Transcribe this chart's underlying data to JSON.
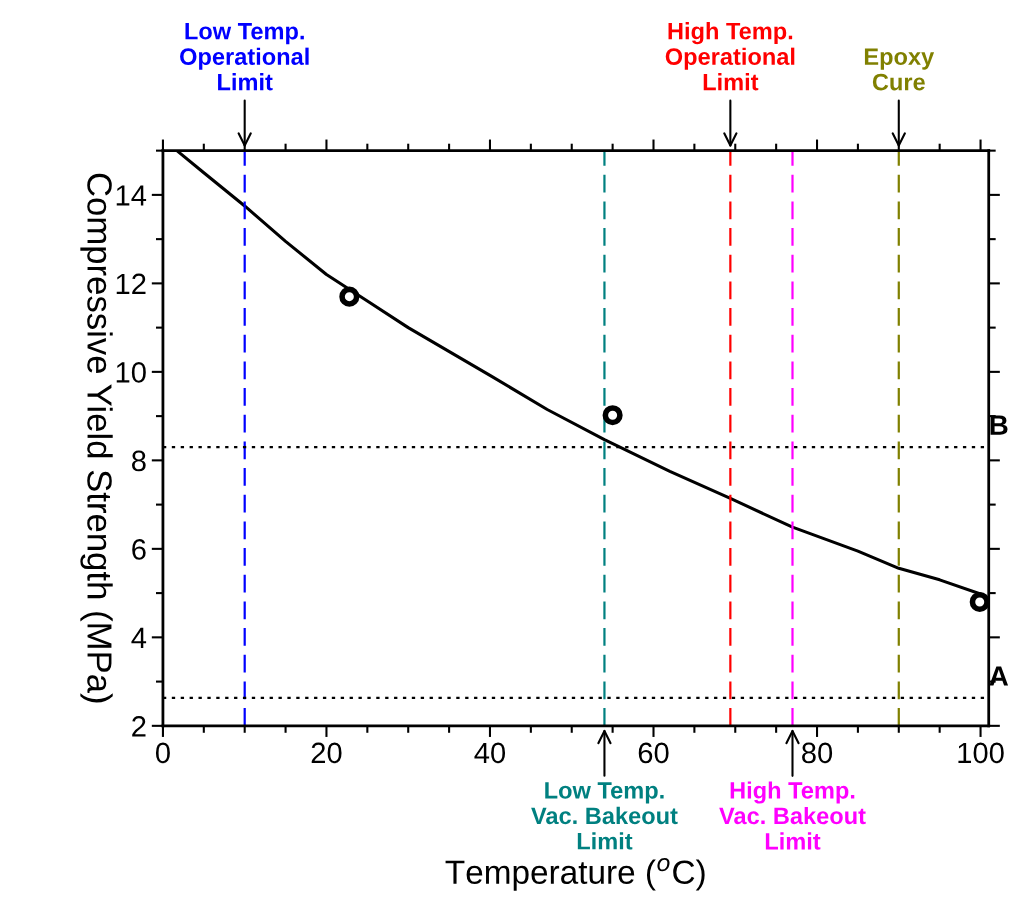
{
  "chart_data": {
    "type": "line",
    "xlabel": "Temperature ($^{o}$C)",
    "ylabel": "Compressive Yield Strength (MPa)",
    "xlim": [
      0,
      101
    ],
    "ylim": [
      2,
      15
    ],
    "xticks": [
      0,
      20,
      40,
      60,
      80,
      100
    ],
    "yticks": [
      2,
      4,
      6,
      8,
      10,
      12,
      14
    ],
    "grid": false,
    "series": [
      {
        "color": "#000000",
        "marker": "none",
        "line_style": "solid",
        "x": [
          1.7,
          5,
          10,
          15,
          20,
          25,
          30,
          40,
          47,
          54,
          62,
          69.4,
          77,
          85,
          90,
          95,
          100
        ],
        "values": [
          15.0,
          14.5,
          13.75,
          12.95,
          12.2,
          11.6,
          11.0,
          9.92,
          9.15,
          8.47,
          7.75,
          7.14,
          6.49,
          5.95,
          5.56,
          5.3,
          4.98
        ]
      },
      {
        "type": "scatter",
        "color": "#000000",
        "marker": "circle",
        "x": [
          22.8,
          55.0,
          99.9
        ],
        "values": [
          11.7,
          9.02,
          4.8
        ]
      }
    ],
    "ref_lines": [
      {
        "axis": "x",
        "value": 10,
        "label": "Low Temp.\nOperational\nLimit",
        "color": "#0000ff",
        "line_style": "dashed"
      },
      {
        "axis": "x",
        "value": 54,
        "label": "Low Temp.\nVac. Bakeout\nLimit",
        "color": "#008080",
        "line_style": "dashed"
      },
      {
        "axis": "x",
        "value": 69.4,
        "label": "High Temp.\nOperational\nLimit",
        "color": "#ff0000",
        "line_style": "dashed"
      },
      {
        "axis": "x",
        "value": 77,
        "label": "High Temp.\nVac. Bakeout\nLimit",
        "color": "#ff00ff",
        "line_style": "dashed"
      },
      {
        "axis": "x",
        "value": 90,
        "label": "Epoxy\nCure",
        "color": "#808000",
        "line_style": "dashed"
      },
      {
        "axis": "y",
        "value": 8.3,
        "label": "B",
        "color": "#000000",
        "line_style": "dotted"
      },
      {
        "axis": "y",
        "value": 2.63,
        "label": "A",
        "color": "#000000",
        "line_style": "dotted"
      }
    ]
  }
}
